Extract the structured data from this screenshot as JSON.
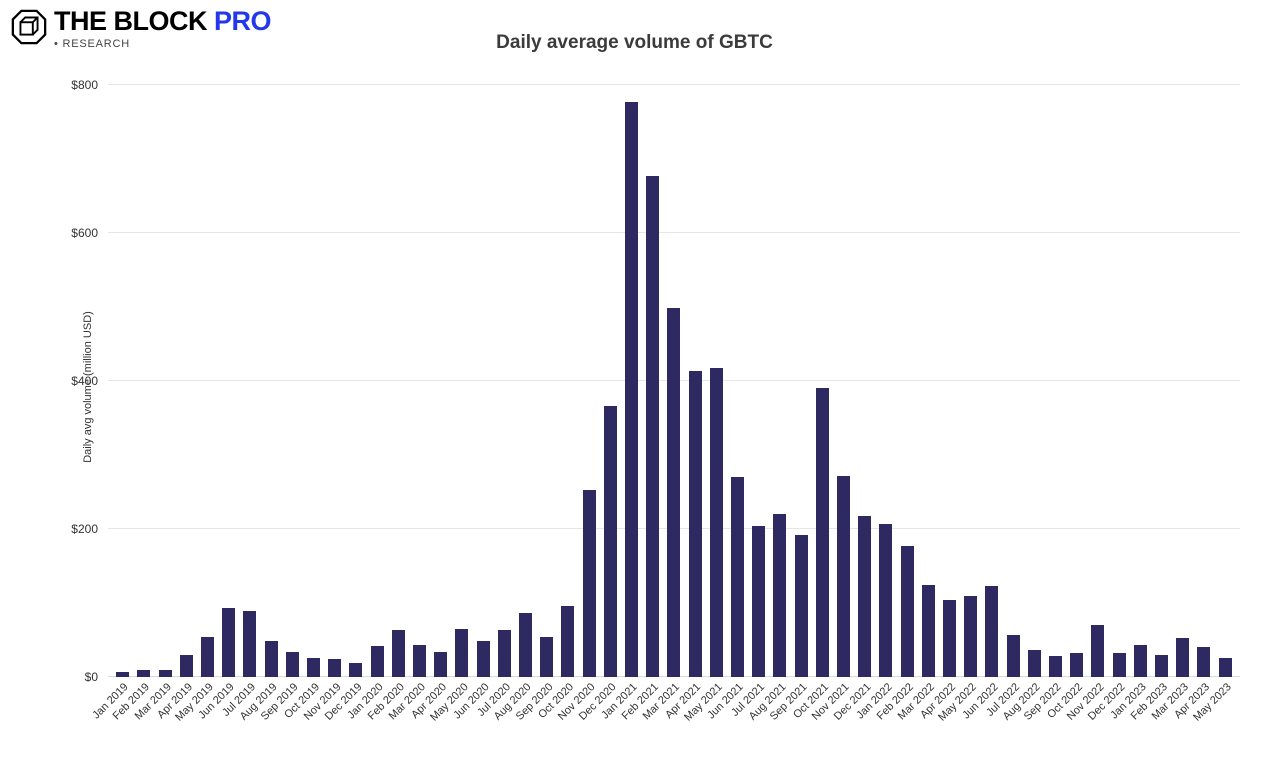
{
  "logo": {
    "brand": "THE BLOCK",
    "pro": "PRO",
    "bullet": "•",
    "sub": "RESEARCH",
    "pro_color": "#2337ec"
  },
  "chart_data": {
    "type": "bar",
    "title": "Daily average volume of GBTC",
    "xlabel": "",
    "ylabel": "Daily avg volume (million USD)",
    "ylim": [
      0,
      800
    ],
    "yticks": [
      0,
      200,
      400,
      600,
      800
    ],
    "ytick_labels": [
      "$0",
      "$200",
      "$400",
      "$600",
      "$800"
    ],
    "grid": true,
    "legend_position": "none",
    "bar_color": "#2e2960",
    "categories": [
      "Jan 2019",
      "Feb 2019",
      "Mar 2019",
      "Apr 2019",
      "May 2019",
      "Jun 2019",
      "Jul 2019",
      "Aug 2019",
      "Sep 2019",
      "Oct 2019",
      "Nov 2019",
      "Dec 2019",
      "Jan 2020",
      "Feb 2020",
      "Mar 2020",
      "Apr 2020",
      "May 2020",
      "Jun 2020",
      "Jul 2020",
      "Aug 2020",
      "Sep 2020",
      "Oct 2020",
      "Nov 2020",
      "Dec 2020",
      "Jan 2021",
      "Feb 2021",
      "Mar 2021",
      "Apr 2021",
      "May 2021",
      "Jun 2021",
      "Jul 2021",
      "Aug 2021",
      "Sep 2021",
      "Oct 2021",
      "Nov 2021",
      "Dec 2021",
      "Jan 2022",
      "Feb 2022",
      "Mar 2022",
      "Apr 2022",
      "May 2022",
      "Jun 2022",
      "Jul 2022",
      "Aug 2022",
      "Sep 2022",
      "Oct 2022",
      "Nov 2022",
      "Dec 2022",
      "Jan 2023",
      "Feb 2023",
      "Mar 2023",
      "Apr 2023",
      "May 2023"
    ],
    "values": [
      7,
      9,
      9,
      30,
      54,
      93,
      89,
      49,
      34,
      26,
      24,
      19,
      42,
      64,
      43,
      34,
      65,
      49,
      64,
      87,
      54,
      96,
      253,
      366,
      777,
      677,
      499,
      414,
      418,
      270,
      204,
      220,
      192,
      391,
      272,
      218,
      207,
      177,
      124,
      104,
      109,
      123,
      57,
      36,
      28,
      32,
      70,
      32,
      43,
      30,
      53,
      40,
      26
    ]
  }
}
